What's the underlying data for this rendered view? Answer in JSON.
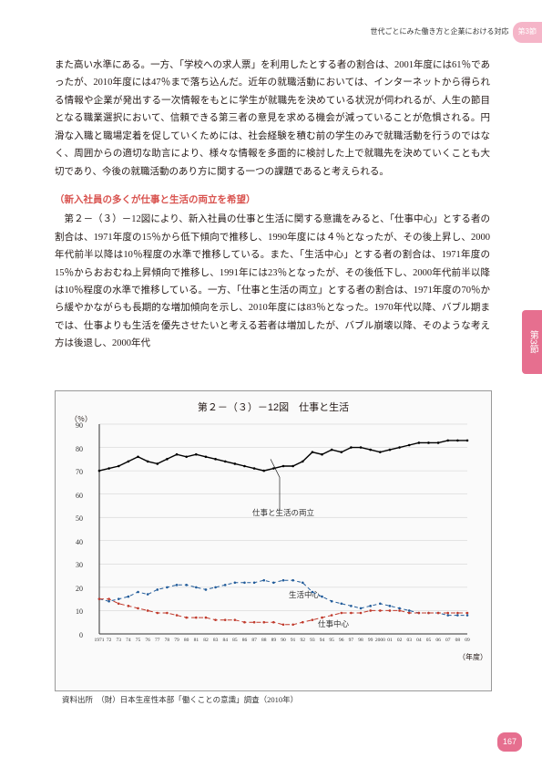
{
  "header": {
    "section_text": "世代ごとにみた働き方と企業における対応",
    "badge": "第3節"
  },
  "body": {
    "para1": "また高い水準にある。一方、「学校への求人票」を利用したとする者の割合は、2001年度には61％であったが、2010年度には47％まで落ち込んだ。近年の就職活動においては、インターネットから得られる情報や企業が発出する一次情報をもとに学生が就職先を決めている状況が伺われるが、人生の節目となる職業選択において、信頼できる第三者の意見を求める機会が減っていることが危惧される。円滑な入職と職場定着を促していくためには、社会経験を積む前の学生のみで就職活動を行うのではなく、周囲からの適切な助言により、様々な情報を多面的に検討した上で就職先を決めていくことも大切であり、今後の就職活動のあり方に関する一つの課題であると考えられる。",
    "subhead": "（新入社員の多くが仕事と生活の両立を希望）",
    "para2": "　第２－（３）－12図により、新入社員の仕事と生活に関する意識をみると、「仕事中心」とする者の割合は、1971年度の15％から低下傾向で推移し、1990年度には４％となったが、その後上昇し、2000年代前半以降は10％程度の水準で推移している。また、「生活中心」とする者の割合は、1971年度の15％からおおむね上昇傾向で推移し、1991年には23％となったが、その後低下し、2000年代前半以降は10％程度の水準で推移している。一方、「仕事と生活の両立」とする者の割合は、1971年度の70％から緩やかながらも長期的な増加傾向を示し、2010年度には83％となった。1970年代以降、バブル期までは、仕事よりも生活を優先させたいと考える若者は増加したが、バブル崩壊以降、そのような考え方は後退し、2000年代"
  },
  "sidetab": "第3節",
  "chart": {
    "title": "第２－（３）－12図　仕事と生活",
    "y_unit": "（％）",
    "x_unit": "（年度）",
    "y_ticks": [
      0,
      10,
      20,
      30,
      40,
      50,
      60,
      70,
      80,
      90
    ],
    "x_ticks": [
      1971,
      72,
      73,
      74,
      75,
      76,
      77,
      78,
      79,
      80,
      81,
      82,
      83,
      84,
      85,
      86,
      87,
      88,
      89,
      90,
      91,
      92,
      93,
      94,
      95,
      96,
      97,
      98,
      99,
      2000,
      "01",
      "02",
      "03",
      "04",
      "05",
      "06",
      "07",
      "08",
      "09"
    ],
    "ylim": [
      0,
      90
    ],
    "background": "#fafafa",
    "grid_color": "#cccccc",
    "series": {
      "balance": {
        "label": "仕事と生活の両立",
        "color": "#000000",
        "width": 1.4,
        "dash": "none",
        "values": [
          70,
          71,
          72,
          74,
          76,
          74,
          73,
          75,
          77,
          76,
          77,
          76,
          75,
          74,
          73,
          72,
          71,
          70,
          71,
          72,
          72,
          74,
          78,
          77,
          79,
          78,
          80,
          80,
          79,
          78,
          79,
          80,
          81,
          82,
          82,
          82,
          83,
          83,
          83
        ],
        "label_pos": {
          "x": 180,
          "y": 96
        }
      },
      "life": {
        "label": "生活中心",
        "color": "#225c9a",
        "width": 1,
        "dash": "4,3",
        "values": [
          15,
          14,
          15,
          16,
          18,
          17,
          19,
          20,
          21,
          21,
          20,
          19,
          20,
          21,
          22,
          22,
          22,
          23,
          22,
          23,
          23,
          22,
          18,
          16,
          14,
          13,
          12,
          11,
          12,
          13,
          12,
          11,
          10,
          9,
          9,
          9,
          8,
          8,
          8
        ],
        "label_pos": {
          "x": 220,
          "y": 186
        }
      },
      "work": {
        "label": "仕事中心",
        "color": "#c0392b",
        "width": 1,
        "dash": "5,3",
        "values": [
          15,
          15,
          13,
          12,
          11,
          10,
          9,
          9,
          8,
          7,
          7,
          7,
          6,
          6,
          6,
          5,
          5,
          5,
          5,
          4,
          4,
          5,
          6,
          7,
          8,
          9,
          9,
          9,
          10,
          10,
          10,
          10,
          9,
          9,
          9,
          9,
          9,
          9,
          9
        ],
        "label_pos": {
          "x": 252,
          "y": 218
        }
      }
    }
  },
  "source": "資料出所　（財）日本生産性本部「働くことの意識」調査（2010年）",
  "page": "167"
}
